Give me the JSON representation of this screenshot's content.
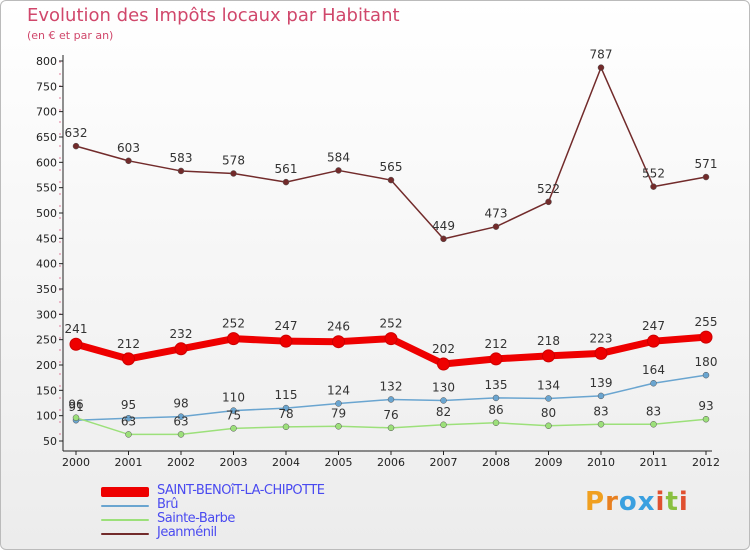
{
  "chart_data": {
    "type": "line",
    "title": "Evolution des Impôts locaux par Habitant",
    "subtitle": "(en € et par an)",
    "categories": [
      "2000",
      "2001",
      "2002",
      "2003",
      "2004",
      "2005",
      "2006",
      "2007",
      "2008",
      "2009",
      "2010",
      "2011",
      "2012"
    ],
    "ylim": [
      50,
      800
    ],
    "yticks": [
      50,
      100,
      150,
      200,
      250,
      300,
      350,
      400,
      450,
      500,
      550,
      600,
      650,
      700,
      750,
      800
    ],
    "series": [
      {
        "name": "Jeanménil",
        "color": "#722b2b",
        "values": [
          632,
          603,
          583,
          578,
          561,
          584,
          565,
          449,
          473,
          522,
          787,
          552,
          571
        ],
        "labels": [
          "632",
          "603",
          "583",
          "578",
          "561",
          "584",
          "565",
          "449",
          "473",
          "522",
          "787",
          "552",
          "571"
        ]
      },
      {
        "name": "Brû",
        "color": "#6aa5d0",
        "values": [
          91,
          95,
          98,
          110,
          115,
          124,
          132,
          130,
          135,
          134,
          139,
          164,
          180
        ],
        "labels": [
          "91",
          "95",
          "98",
          "110",
          "115",
          "124",
          "132",
          "130",
          "135",
          "134",
          "139",
          "164",
          "180"
        ]
      },
      {
        "name": "Sainte-Barbe",
        "color": "#9ce07a",
        "values": [
          96,
          63,
          63,
          75,
          78,
          79,
          76,
          82,
          86,
          80,
          83,
          83,
          93
        ],
        "labels": [
          "96",
          "63",
          "63",
          "75",
          "78",
          "79",
          "76",
          "82",
          "86",
          "80",
          "83",
          "83",
          "93"
        ]
      },
      {
        "name": "SAINT-BENOîT-LA-CHIPOTTE",
        "color": "#ee0000",
        "values": [
          241,
          212,
          232,
          252,
          247,
          246,
          252,
          202,
          212,
          218,
          223,
          247,
          255
        ],
        "labels": [
          "241",
          "212",
          "232",
          "252",
          "247",
          "246",
          "252",
          "202",
          "212",
          "218",
          "223",
          "247",
          "255"
        ]
      }
    ],
    "legend_order": [
      "SAINT-BENOîT-LA-CHIPOTTE",
      "Brû",
      "Sainte-Barbe",
      "Jeanménil"
    ],
    "legend_position": "bottom-left",
    "grid": false
  },
  "legend": {
    "items": [
      {
        "label": "SAINT-BENOîT-LA-CHIPOTTE",
        "color": "#ee0000"
      },
      {
        "label": "Brû",
        "color": "#6aa5d0"
      },
      {
        "label": "Sainte-Barbe",
        "color": "#9ce07a"
      },
      {
        "label": "Jeanménil",
        "color": "#722b2b"
      }
    ]
  },
  "brand": {
    "letters": [
      "P",
      "r",
      "o",
      "x",
      "i",
      "t",
      "i"
    ],
    "colors": [
      "#f0a020",
      "#e88020",
      "#3aa0e0",
      "#3aa0e0",
      "#e05030",
      "#8ac040",
      "#e05030"
    ]
  }
}
